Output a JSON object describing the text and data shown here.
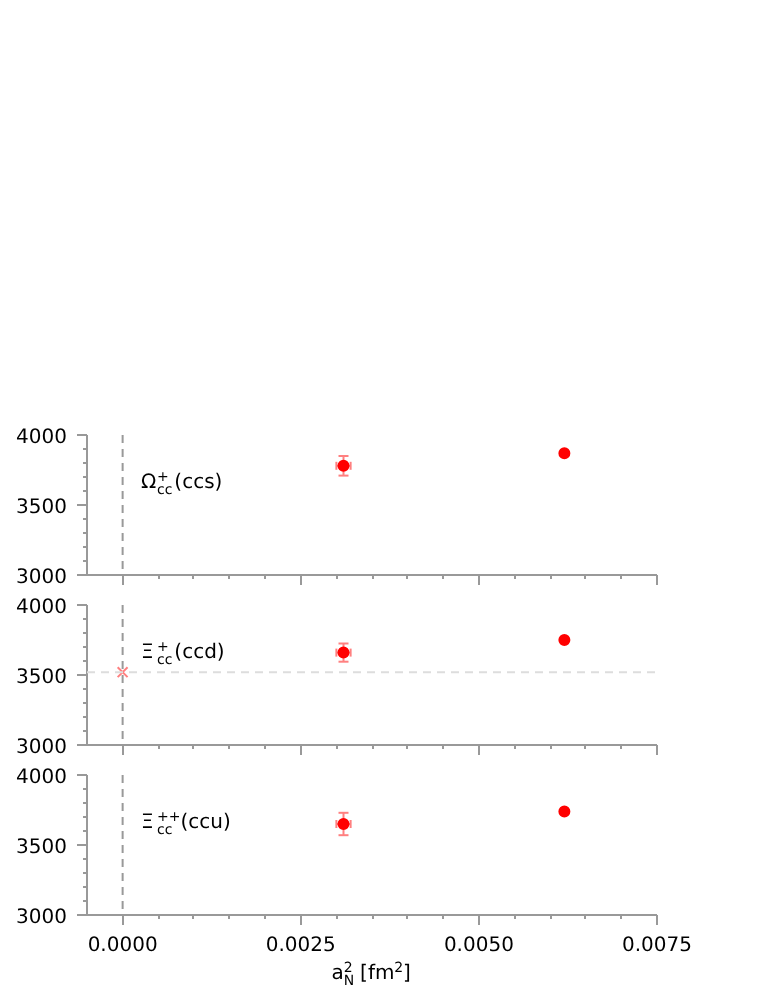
{
  "chart_data": [
    {
      "type": "scatter",
      "xlim": [
        -0.0005,
        0.0075
      ],
      "ylim": [
        3000,
        4000
      ],
      "yticks": [
        3000,
        3500,
        4000
      ],
      "xticks": [
        {
          "value": 0,
          "label": null
        },
        {
          "value": 0.0025,
          "label": null
        },
        {
          "value": 0.005,
          "label": null
        },
        {
          "value": 0.0075,
          "label": null
        }
      ],
      "tick_labels": "y",
      "marker": "circle",
      "grid": false,
      "annotations": [
        "Ω$_{cc}$$^{+}$(ccs)"
      ],
      "ref_lines": [
        {
          "axis": "x",
          "value": 0,
          "line_style": "dashed",
          "color": "#999999"
        }
      ],
      "series": [
        {
          "color": "#ff0000",
          "x": [
            0.0031,
            0.0062
          ],
          "values": [
            3780,
            3870
          ],
          "errors": [
            70,
            null
          ],
          "xerrors": [
            0.0001,
            null
          ]
        }
      ]
    },
    {
      "type": "scatter",
      "xlim": [
        -0.0005,
        0.0075
      ],
      "ylim": [
        3000,
        4000
      ],
      "yticks": [
        3000,
        3500,
        4000
      ],
      "xticks": [
        {
          "value": 0,
          "label": null
        },
        {
          "value": 0.0025,
          "label": null
        },
        {
          "value": 0.005,
          "label": null
        },
        {
          "value": 0.0075,
          "label": null
        }
      ],
      "tick_labels": "y",
      "marker": "circle",
      "grid": false,
      "annotations": [
        "Ξ$_{cc}$$^{+}$(ccd)"
      ],
      "ref_lines": [
        {
          "axis": "x",
          "value": 0,
          "line_style": "dashed",
          "color": "#999999"
        },
        {
          "axis": "y",
          "value": 3520,
          "line_style": "dashed",
          "color": "#dddddd"
        }
      ],
      "series": [
        {
          "color": "#ff0000",
          "x": [
            0.0031,
            0.0062
          ],
          "values": [
            3660,
            3750
          ],
          "errors": [
            65,
            null
          ],
          "xerrors": [
            0.0001,
            null
          ]
        },
        {
          "color": "#ff8080",
          "x": [
            0
          ],
          "values": [
            3520
          ],
          "marker": "cross"
        }
      ]
    },
    {
      "type": "scatter",
      "xlim": [
        -0.0005,
        0.0075
      ],
      "ylim": [
        3000,
        4000
      ],
      "yticks": [
        3000,
        3500,
        4000
      ],
      "xticks": [
        {
          "value": 0,
          "label": "0.0000"
        },
        {
          "value": 0.0025,
          "label": "0.0025"
        },
        {
          "value": 0.005,
          "label": "0.0050"
        },
        {
          "value": 0.0075,
          "label": "0.0075"
        }
      ],
      "marker": "circle",
      "grid": false,
      "xlabel": "a$_{N}$$^{2}$ [fm$^{2}$]",
      "annotations": [
        "Ξ$_{cc}$$^{++}$(ccu)"
      ],
      "ref_lines": [
        {
          "axis": "x",
          "value": 0,
          "line_style": "dashed",
          "color": "#999999"
        }
      ],
      "series": [
        {
          "color": "#ff0000",
          "x": [
            0.0031,
            0.0062
          ],
          "values": [
            3650,
            3740
          ],
          "errors": [
            80,
            null
          ],
          "xerrors": [
            0.0001,
            null
          ]
        }
      ]
    }
  ]
}
